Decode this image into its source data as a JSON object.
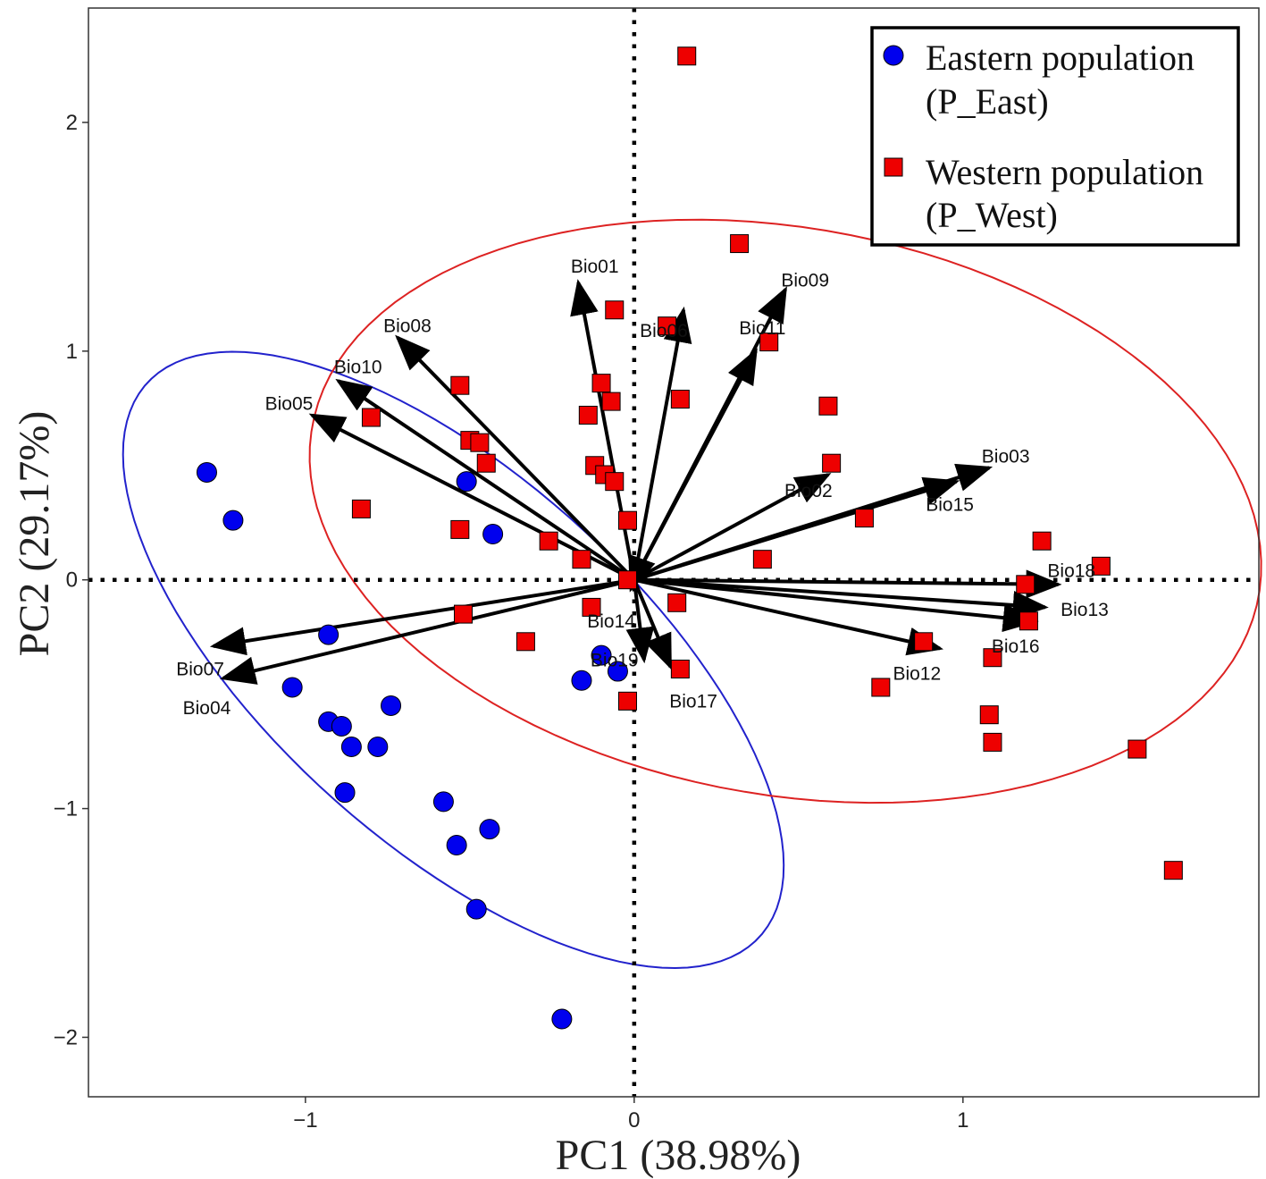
{
  "chart_data": {
    "type": "scatter",
    "subtype": "pca-biplot",
    "xlabel": "PC1 (38.98%)",
    "ylabel": "PC2 (29.17%)",
    "xlim": [
      -1.66,
      1.9
    ],
    "ylim": [
      -2.26,
      2.5
    ],
    "xticks": [
      {
        "value": -1,
        "label": "−1"
      },
      {
        "value": 0,
        "label": "0"
      },
      {
        "value": 1,
        "label": "1"
      }
    ],
    "yticks": [
      {
        "value": -2,
        "label": "−2"
      },
      {
        "value": -1,
        "label": "−1"
      },
      {
        "value": 0,
        "label": "0"
      },
      {
        "value": 1,
        "label": "1"
      },
      {
        "value": 2,
        "label": "2"
      }
    ],
    "reference_lines": {
      "x": 0,
      "y": 0,
      "style": "dotted"
    },
    "legend": {
      "position": "top-right",
      "entries": [
        {
          "series": "east",
          "line1": "Eastern population",
          "line2": "(P_East)"
        },
        {
          "series": "west",
          "line1": "Western population",
          "line2": "(P_West)"
        }
      ]
    },
    "series": [
      {
        "name": "Eastern population (P_East)",
        "key": "east",
        "marker": "circle",
        "color": "#0000ee",
        "points": [
          [
            -1.3,
            0.47
          ],
          [
            -1.22,
            0.26
          ],
          [
            -0.51,
            0.43
          ],
          [
            -0.43,
            0.2
          ],
          [
            -0.93,
            -0.24
          ],
          [
            -1.04,
            -0.47
          ],
          [
            -0.93,
            -0.62
          ],
          [
            -0.89,
            -0.64
          ],
          [
            -0.86,
            -0.73
          ],
          [
            -0.78,
            -0.73
          ],
          [
            -0.74,
            -0.55
          ],
          [
            -0.88,
            -0.93
          ],
          [
            -0.58,
            -0.97
          ],
          [
            -0.54,
            -1.16
          ],
          [
            -0.44,
            -1.09
          ],
          [
            -0.48,
            -1.44
          ],
          [
            -0.22,
            -1.92
          ],
          [
            -0.16,
            -0.44
          ],
          [
            -0.05,
            -0.4
          ],
          [
            -0.1,
            -0.33
          ]
        ]
      },
      {
        "name": "Western population (P_West)",
        "key": "west",
        "marker": "square",
        "color": "#ee0000",
        "points": [
          [
            0.16,
            2.29
          ],
          [
            0.32,
            1.47
          ],
          [
            -0.06,
            1.18
          ],
          [
            0.1,
            1.11
          ],
          [
            0.41,
            1.04
          ],
          [
            -0.1,
            0.86
          ],
          [
            -0.07,
            0.78
          ],
          [
            0.14,
            0.79
          ],
          [
            -0.14,
            0.72
          ],
          [
            0.59,
            0.76
          ],
          [
            -0.53,
            0.85
          ],
          [
            -0.8,
            0.71
          ],
          [
            -0.5,
            0.61
          ],
          [
            -0.47,
            0.6
          ],
          [
            -0.45,
            0.51
          ],
          [
            -0.12,
            0.5
          ],
          [
            -0.09,
            0.46
          ],
          [
            -0.06,
            0.43
          ],
          [
            0.6,
            0.51
          ],
          [
            0.7,
            0.27
          ],
          [
            -0.83,
            0.31
          ],
          [
            -0.53,
            0.22
          ],
          [
            -0.26,
            0.17
          ],
          [
            -0.02,
            0.26
          ],
          [
            -0.16,
            0.09
          ],
          [
            0.39,
            0.09
          ],
          [
            -0.02,
            0.0
          ],
          [
            0.13,
            -0.1
          ],
          [
            -0.52,
            -0.15
          ],
          [
            -0.33,
            -0.27
          ],
          [
            -0.13,
            -0.12
          ],
          [
            0.14,
            -0.39
          ],
          [
            -0.02,
            -0.53
          ],
          [
            0.75,
            -0.47
          ],
          [
            0.88,
            -0.27
          ],
          [
            1.09,
            -0.34
          ],
          [
            1.08,
            -0.59
          ],
          [
            1.09,
            -0.71
          ],
          [
            1.19,
            -0.02
          ],
          [
            1.24,
            0.17
          ],
          [
            1.42,
            0.06
          ],
          [
            1.2,
            -0.18
          ],
          [
            1.53,
            -0.74
          ],
          [
            1.64,
            -1.27
          ]
        ]
      }
    ],
    "ellipses": [
      {
        "series": "east",
        "color": "#2222cc",
        "center": [
          -0.55,
          -0.35
        ],
        "axis_a": 1.55,
        "axis_b": 0.65,
        "angle_deg": -57
      },
      {
        "series": "west",
        "color": "#dd2222",
        "center": [
          0.46,
          0.3
        ],
        "axis_a": 1.51,
        "axis_b": 1.2,
        "angle_deg": -28
      }
    ],
    "loadings": [
      {
        "name": "Bio01",
        "x": -0.17,
        "y": 1.3,
        "label_x": -0.12,
        "label_y": 1.37
      },
      {
        "name": "Bio02",
        "x": 0.59,
        "y": 0.46,
        "label_x": 0.53,
        "label_y": 0.39
      },
      {
        "name": "Bio03",
        "x": 1.08,
        "y": 0.49,
        "label_x": 1.13,
        "label_y": 0.54
      },
      {
        "name": "Bio04",
        "x": -1.25,
        "y": -0.43,
        "label_x": -1.3,
        "label_y": -0.56
      },
      {
        "name": "Bio05",
        "x": -0.98,
        "y": 0.72,
        "label_x": -1.05,
        "label_y": 0.77
      },
      {
        "name": "Bio06",
        "x": 0.15,
        "y": 1.18,
        "label_x": 0.09,
        "label_y": 1.09
      },
      {
        "name": "Bio07",
        "x": -1.28,
        "y": -0.29,
        "label_x": -1.32,
        "label_y": -0.39
      },
      {
        "name": "Bio08",
        "x": -0.72,
        "y": 1.06,
        "label_x": -0.69,
        "label_y": 1.11
      },
      {
        "name": "Bio09",
        "x": 0.46,
        "y": 1.27,
        "label_x": 0.52,
        "label_y": 1.31
      },
      {
        "name": "Bio10",
        "x": -0.9,
        "y": 0.87,
        "label_x": -0.84,
        "label_y": 0.93
      },
      {
        "name": "Bio11",
        "x": 0.37,
        "y": 1.0,
        "label_x": 0.39,
        "label_y": 1.1
      },
      {
        "name": "Bio12",
        "x": 0.93,
        "y": -0.3,
        "label_x": 0.86,
        "label_y": -0.41
      },
      {
        "name": "Bio13",
        "x": 1.25,
        "y": -0.12,
        "label_x": 1.37,
        "label_y": -0.13
      },
      {
        "name": "Bio14",
        "x": -0.01,
        "y": -0.04,
        "label_x": -0.07,
        "label_y": -0.18
      },
      {
        "name": "Bio15",
        "x": 0.98,
        "y": 0.43,
        "label_x": 0.96,
        "label_y": 0.33
      },
      {
        "name": "Bio16",
        "x": 1.22,
        "y": -0.18,
        "label_x": 1.16,
        "label_y": -0.29
      },
      {
        "name": "Bio17",
        "x": 0.11,
        "y": -0.38,
        "label_x": 0.18,
        "label_y": -0.53
      },
      {
        "name": "Bio18",
        "x": 1.29,
        "y": -0.02,
        "label_x": 1.33,
        "label_y": 0.04
      },
      {
        "name": "Bio19",
        "x": 0.03,
        "y": -0.35,
        "label_x": -0.06,
        "label_y": -0.35
      }
    ]
  }
}
